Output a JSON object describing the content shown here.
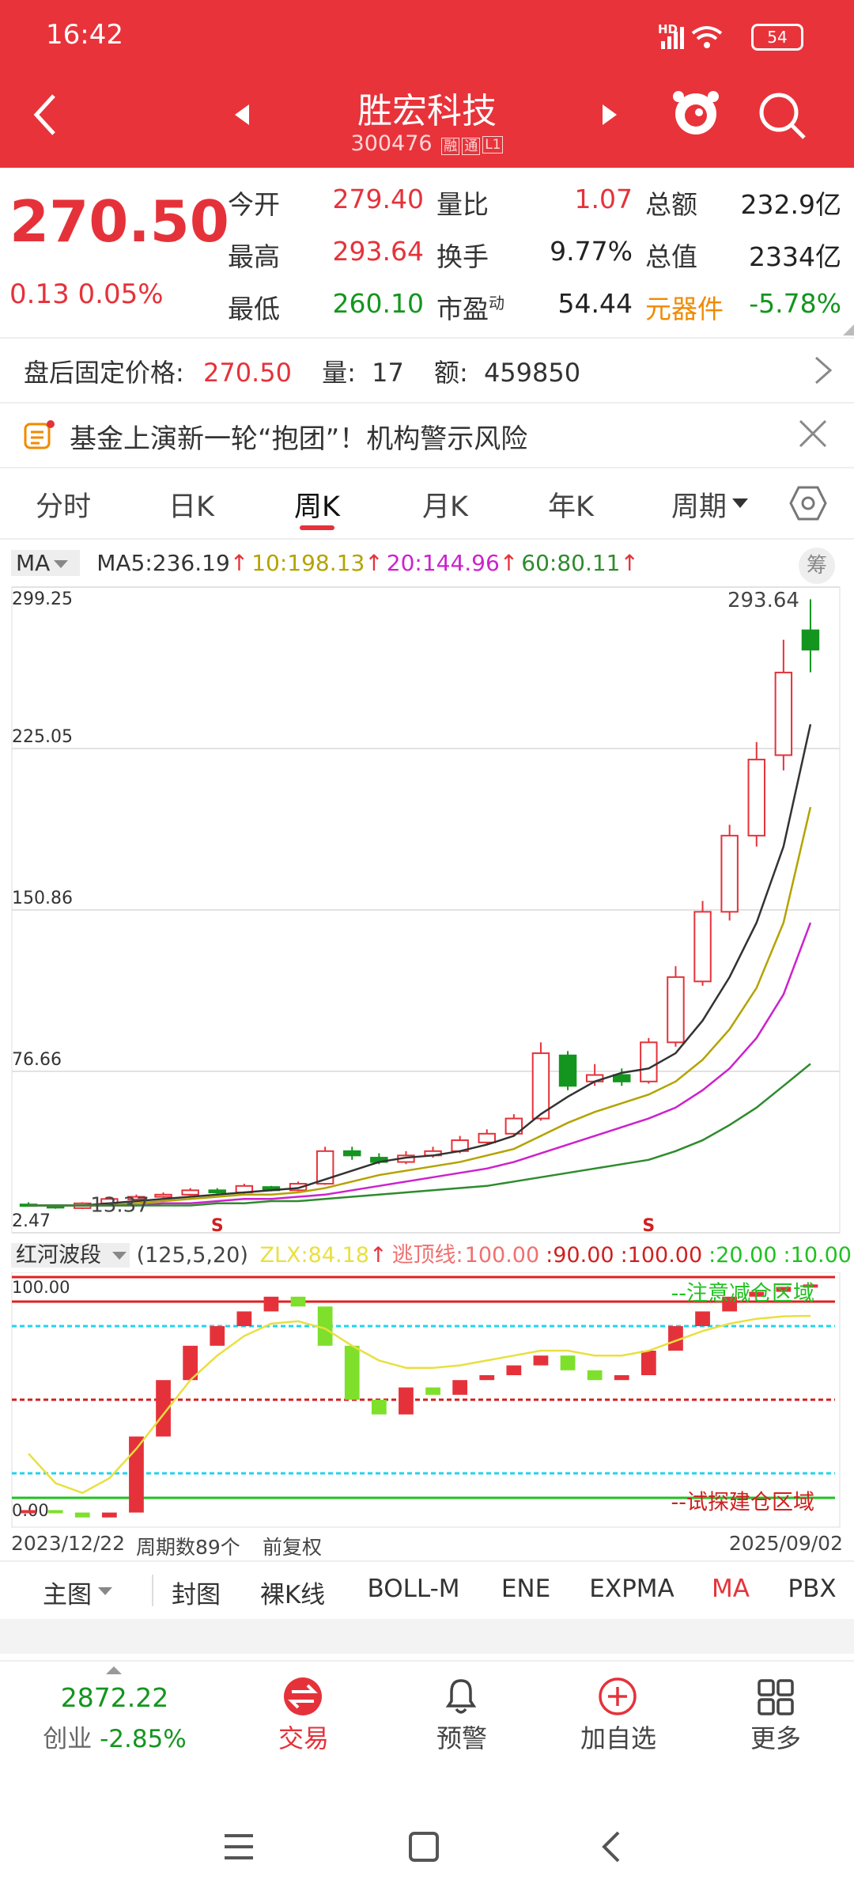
{
  "status_bar": {
    "time": "16:42",
    "battery": "54",
    "network": "HD"
  },
  "header": {
    "title": "胜宏科技",
    "code": "300476",
    "tags": [
      "融",
      "通",
      "L1"
    ]
  },
  "quote": {
    "price": "270.50",
    "change": "0.13",
    "change_pct": "0.05%",
    "rows": [
      [
        {
          "label": "今开",
          "value": "279.40",
          "color": "#e5323a"
        },
        {
          "label": "量比",
          "value": "1.07",
          "color": "#e5323a"
        },
        {
          "label": "总额",
          "value": "232.9亿",
          "color": "#222222"
        }
      ],
      [
        {
          "label": "最高",
          "value": "293.64",
          "color": "#e5323a"
        },
        {
          "label": "换手",
          "value": "9.77%",
          "color": "#222222"
        },
        {
          "label": "总值",
          "value": "2334亿",
          "color": "#222222"
        }
      ],
      [
        {
          "label": "最低",
          "value": "260.10",
          "color": "#14951f"
        },
        {
          "label": "市盈",
          "sup": "动",
          "value": "54.44",
          "color": "#222222"
        },
        {
          "label": "元器件",
          "label_color": "#f08a00",
          "value": "-5.78%",
          "color": "#14951f"
        }
      ]
    ]
  },
  "after_hours": {
    "label": "盘后固定价格:",
    "price": "270.50",
    "volume_label": "量:",
    "volume": "17",
    "amount_label": "额:",
    "amount": "459850"
  },
  "news": {
    "text": "基金上演新一轮“抱团”！机构警示风险"
  },
  "tabs": {
    "items": [
      "分时",
      "日K",
      "周K",
      "月K",
      "年K",
      "周期"
    ],
    "active": 2
  },
  "chart_data": {
    "type": "candlestick",
    "ma_selector": "MA",
    "chip_button": "筹",
    "ma": [
      {
        "name": "MA5:",
        "arrow": "↑",
        "color": "#333333",
        "values": [
          15,
          15,
          15,
          16,
          17,
          18,
          19,
          20,
          21,
          22,
          23,
          27,
          31,
          35,
          37,
          38,
          40,
          43,
          47,
          57,
          65,
          72,
          76,
          78,
          85,
          100,
          120,
          145,
          180,
          236.19
        ]
      },
      {
        "name": "10:",
        "arrow": "↑",
        "color": "#b3a300",
        "values": [
          15,
          15,
          15,
          15,
          16,
          17,
          18,
          19,
          20,
          20,
          21,
          23,
          26,
          29,
          31,
          33,
          35,
          38,
          41,
          47,
          53,
          58,
          62,
          66,
          72,
          82,
          96,
          115,
          145,
          198.13
        ]
      },
      {
        "name": "20:",
        "arrow": "↑",
        "color": "#cc22cc",
        "values": [
          15,
          15,
          15,
          15,
          15,
          16,
          16,
          17,
          18,
          18,
          19,
          20,
          22,
          24,
          26,
          28,
          30,
          32,
          35,
          39,
          43,
          47,
          51,
          55,
          60,
          68,
          78,
          92,
          112,
          144.96
        ]
      },
      {
        "name": "60:",
        "arrow": "↑",
        "color": "#2e8b2e",
        "values": [
          15,
          15,
          15,
          15,
          15,
          15,
          15,
          16,
          16,
          17,
          17,
          18,
          19,
          20,
          21,
          22,
          23,
          24,
          26,
          28,
          30,
          32,
          34,
          36,
          40,
          45,
          52,
          60,
          70,
          80.11
        ]
      }
    ],
    "open": [
      15.5,
      15,
      13.8,
      16,
      17.8,
      19,
      20,
      22,
      21,
      23.5,
      22,
      25,
      40,
      37,
      35,
      38,
      40,
      44,
      48,
      55,
      84,
      72,
      75,
      72,
      90,
      118,
      150,
      185,
      222,
      279.4
    ],
    "high": [
      16.5,
      15.5,
      16.5,
      18.8,
      20,
      21,
      23,
      23,
      25,
      24,
      26,
      42,
      42,
      39,
      40,
      42,
      47,
      50,
      57,
      90,
      86,
      80,
      78,
      92,
      125,
      155,
      190,
      228,
      275,
      293.64
    ],
    "low": [
      14.5,
      13.5,
      13.37,
      15.5,
      17.5,
      18.5,
      19.5,
      20.5,
      20.5,
      21.5,
      21.5,
      24.5,
      36,
      34,
      34,
      37,
      39,
      43,
      47,
      54,
      68,
      70,
      70,
      71,
      88,
      116,
      146,
      180,
      215,
      260.1
    ],
    "close": [
      15,
      14,
      16,
      18,
      19,
      20,
      22,
      21,
      24,
      22,
      25,
      40,
      38,
      35,
      38,
      40,
      45,
      48,
      55,
      85,
      70,
      75,
      72,
      90,
      120,
      150,
      185,
      220,
      260,
      270.5
    ],
    "up_color": "#e5323a",
    "down_color": "#14951f",
    "ylim": [
      2.47,
      299.25
    ],
    "yticks": [
      2.47,
      76.66,
      150.86,
      225.05,
      299.25
    ],
    "grid": true,
    "high_mark": 29,
    "low_mark": 2,
    "signals": [
      {
        "index": 7,
        "label": "S"
      },
      {
        "index": 23,
        "label": "S"
      }
    ],
    "start_date": "2023/12/22",
    "period_count": "周期数89个",
    "adjust": "前复权",
    "end_date": "2025/09/02"
  },
  "indicator": {
    "name": "红河波段",
    "params": "(125,5,20)",
    "zlx_label": "ZLX:",
    "zlx_arrow": "↑",
    "zlx_color": "#e8e040",
    "escape_label": "逃顶线:",
    "escape_values": [
      100,
      90,
      100,
      20,
      10
    ],
    "escape_value_labels": [
      "100.00",
      ":90.00",
      ":100.00",
      ":20.00",
      ":10.00"
    ],
    "ylim": [
      0,
      100
    ],
    "yticks": [
      {
        "value": 0,
        "label": "0.00"
      },
      {
        "value": 100,
        "label": "100.00"
      }
    ],
    "levels": [
      {
        "value": 100,
        "color": "#e02020",
        "dashed": false
      },
      {
        "value": 90,
        "color": "#e02020",
        "dashed": false
      },
      {
        "value": 80,
        "color": "#22d3ee",
        "dashed": true
      },
      {
        "value": 50,
        "color": "#d02020",
        "dashed": true
      },
      {
        "value": 20,
        "color": "#22d3ee",
        "dashed": true
      },
      {
        "value": 10,
        "color": "#22c022",
        "dashed": false
      }
    ],
    "zones": [
      {
        "label": "--注意减仓区域",
        "color": "#22c022"
      },
      {
        "label": "--试探建仓区域",
        "color": "#d02020"
      }
    ],
    "bars": [
      5,
      4,
      2,
      4,
      35,
      58,
      72,
      80,
      86,
      92,
      88,
      72,
      50,
      44,
      55,
      52,
      58,
      60,
      64,
      68,
      62,
      58,
      60,
      70,
      80,
      86,
      92,
      94,
      96,
      97
    ],
    "zlx": [
      28,
      16,
      12,
      18,
      30,
      44,
      58,
      68,
      76,
      81,
      82,
      79,
      72,
      66,
      63,
      63,
      64,
      66,
      68,
      70,
      70,
      68,
      68,
      70,
      74,
      78,
      81,
      83,
      84,
      84.18
    ],
    "bar_up_color": "#e5323a",
    "bar_down_color": "#7ee02b"
  },
  "toolbar": {
    "items": [
      "主图",
      "封图",
      "裸K线",
      "BOLL-M",
      "ENE",
      "EXPMA",
      "MA",
      "PBX"
    ],
    "active": 6
  },
  "bottom_nav": {
    "index_value": "2872.22",
    "index_name": "创业",
    "index_change": "-2.85%",
    "items": [
      "交易",
      "预警",
      "加自选",
      "更多"
    ]
  }
}
